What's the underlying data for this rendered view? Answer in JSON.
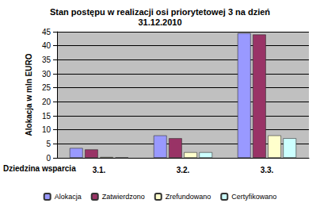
{
  "chart_data": {
    "type": "bar",
    "title": "Stan postępu w realizacji osi priorytetowej 3 na dzień\n31.12.2010",
    "xlabel": "Dziedzina wsparcia",
    "ylabel": "Alokacja w mln EURO",
    "categories": [
      "3.1.",
      "3.2.",
      "3.3."
    ],
    "series": [
      {
        "name": "Alokacja",
        "color": "#9999ff",
        "values": [
          3.5,
          8,
          44.5
        ]
      },
      {
        "name": "Zatwierdzono",
        "color": "#993366",
        "values": [
          3,
          7,
          44
        ]
      },
      {
        "name": "Zrefundowano",
        "color": "#ffffcc",
        "values": [
          0.3,
          2,
          8
        ]
      },
      {
        "name": "Certyfikowano",
        "color": "#ccffff",
        "values": [
          0.1,
          2,
          7
        ]
      }
    ],
    "ylim": [
      0,
      45
    ],
    "yticks": [
      0,
      5,
      10,
      15,
      20,
      25,
      30,
      35,
      40,
      45
    ],
    "grid": true,
    "legend": "bottom"
  }
}
